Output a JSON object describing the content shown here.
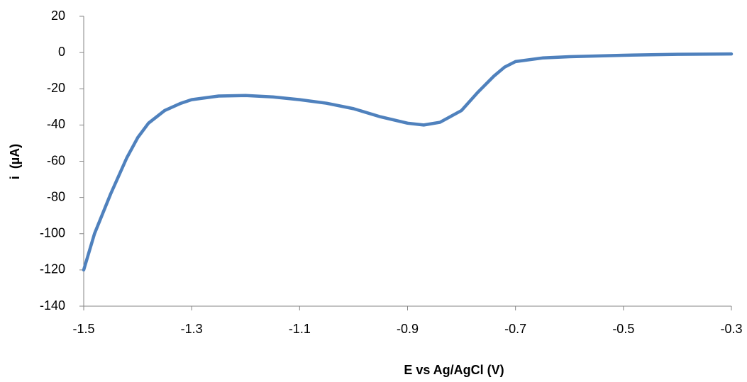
{
  "chart_data": {
    "type": "line",
    "x_label": "E vs Ag/AgCl (V)",
    "y_label": "i  (µA)",
    "x": [
      -1.5,
      -1.48,
      -1.45,
      -1.42,
      -1.4,
      -1.38,
      -1.35,
      -1.32,
      -1.3,
      -1.25,
      -1.2,
      -1.15,
      -1.1,
      -1.05,
      -1.0,
      -0.95,
      -0.9,
      -0.87,
      -0.84,
      -0.8,
      -0.77,
      -0.74,
      -0.72,
      -0.7,
      -0.65,
      -0.6,
      -0.5,
      -0.4,
      -0.3
    ],
    "values": [
      -120,
      -100,
      -78,
      -58,
      -47,
      -39,
      -32,
      -28,
      -26,
      -24,
      -23.7,
      -24.5,
      -26,
      -28,
      -31,
      -35.5,
      -39,
      -40,
      -38.5,
      -32,
      -22,
      -13,
      -8,
      -5,
      -3,
      -2.3,
      -1.5,
      -1,
      -0.8
    ],
    "color": "#4f81bd",
    "xlim": [
      -1.5,
      -0.3
    ],
    "xticks": [
      -1.5,
      -1.3,
      -1.1,
      -0.9,
      -0.7,
      -0.5,
      -0.3
    ],
    "ylim": [
      -140,
      20
    ],
    "yticks": [
      -140,
      -120,
      -100,
      -80,
      -60,
      -40,
      -20,
      0,
      20
    ],
    "grid": false
  }
}
